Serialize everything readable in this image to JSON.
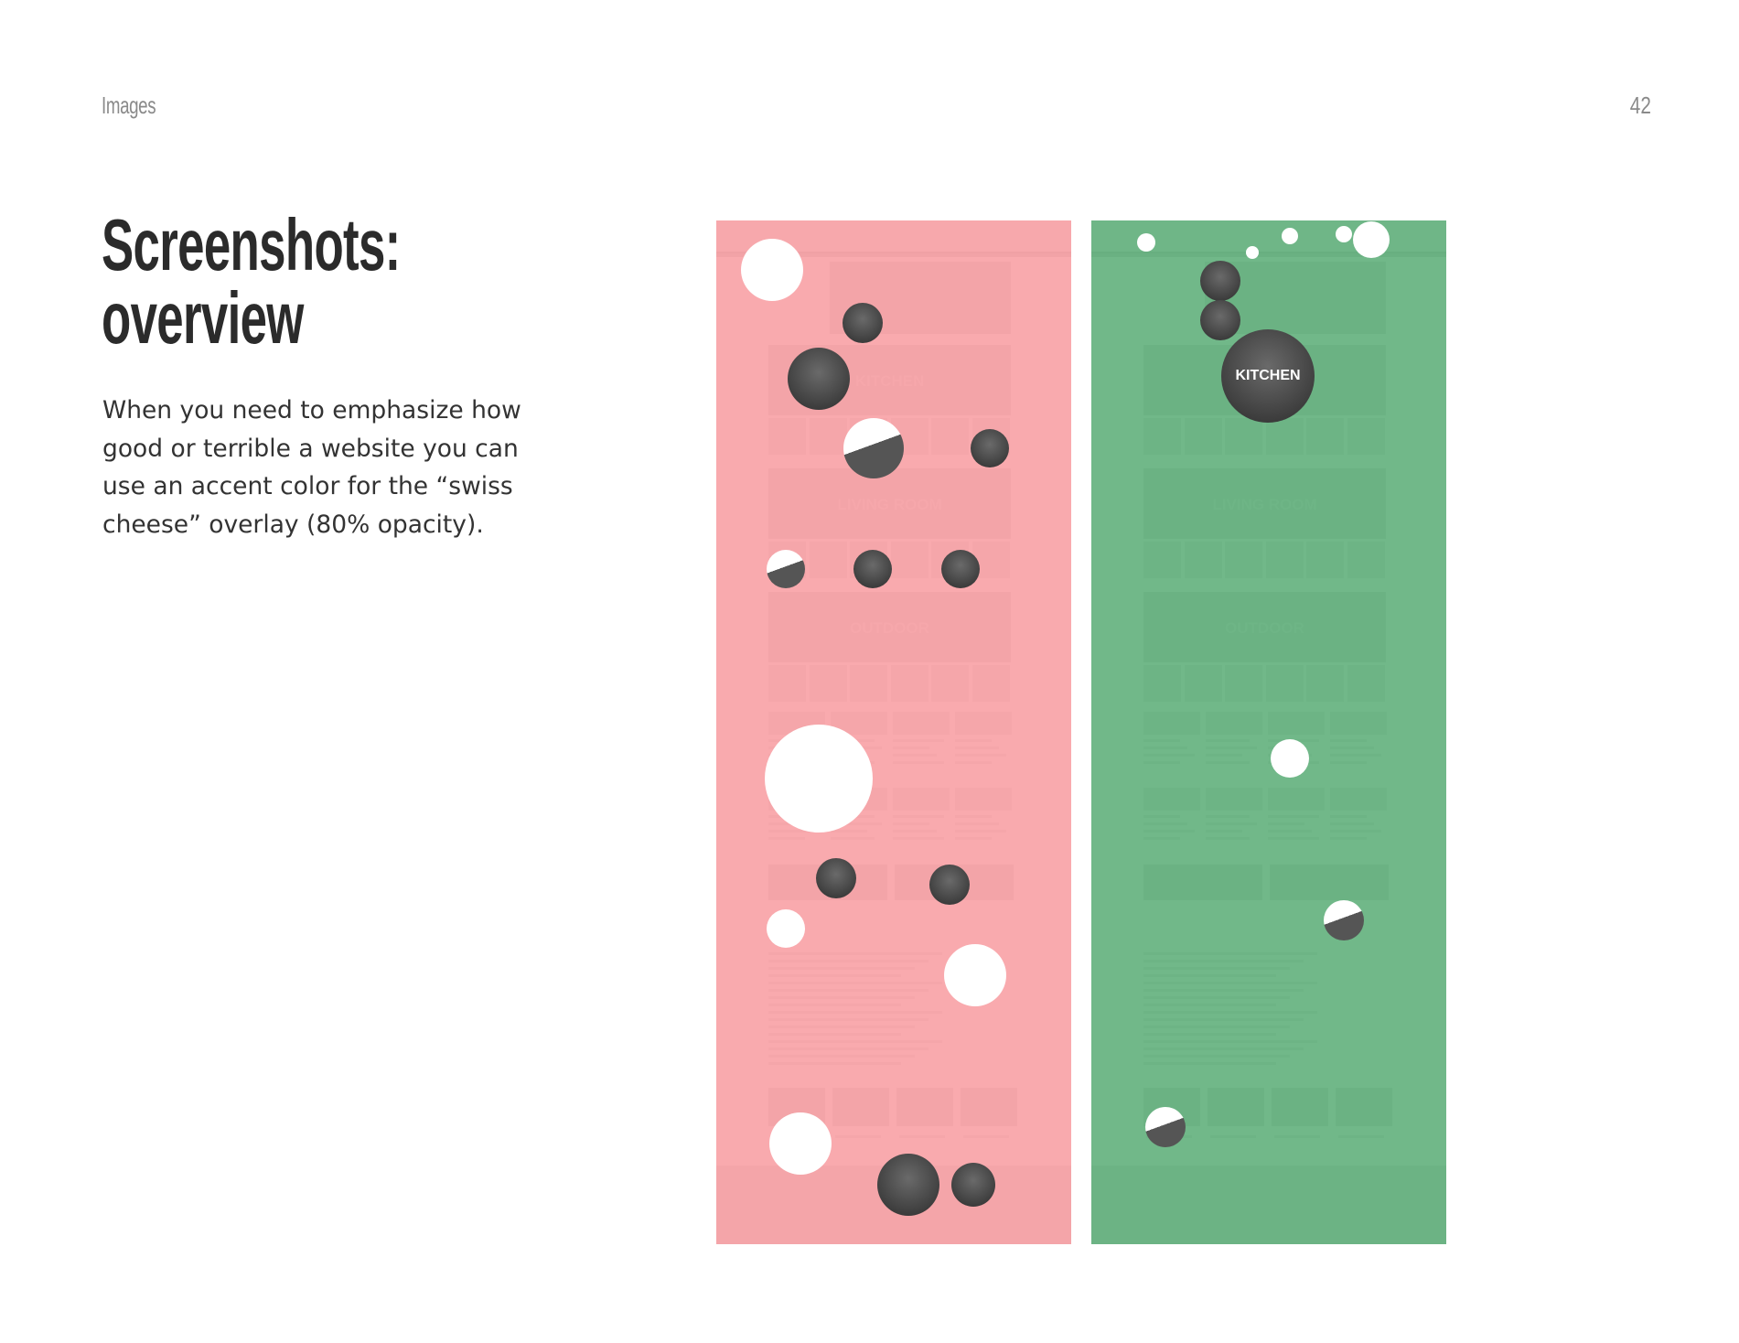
{
  "header": {
    "section": "Images",
    "page_number": "42"
  },
  "title": {
    "line1": "Screenshots:",
    "line2": "overview"
  },
  "body": "When you need to emphasize how good or terrible a website you can use an accent color for the “swiss cheese” overlay (80% opacity).",
  "colors": {
    "bad_overlay": "#f8959a",
    "good_overlay": "#4ea66c"
  },
  "panels": [
    {
      "id": "bad",
      "overlay_opacity": 0.8,
      "sections": [
        "KITCHEN",
        "LIVING ROOM",
        "OUTDOOR"
      ]
    },
    {
      "id": "good",
      "overlay_opacity": 0.8,
      "sections": [
        "KITCHEN",
        "LIVING ROOM",
        "OUTDOOR"
      ],
      "hole_text": "KITCHEN"
    }
  ]
}
